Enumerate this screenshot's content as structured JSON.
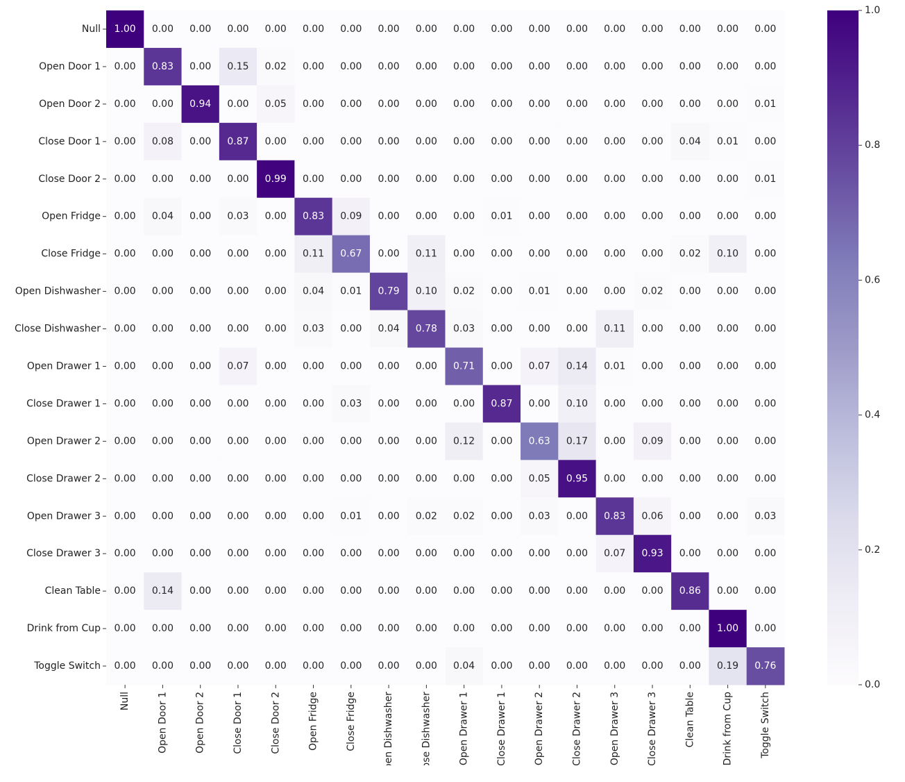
{
  "chart_data": {
    "type": "heatmap",
    "categories": [
      "Null",
      "Open Door 1",
      "Open Door 2",
      "Close Door 1",
      "Close Door 2",
      "Open Fridge",
      "Close Fridge",
      "Open Dishwasher",
      "Close Dishwasher",
      "Open Drawer 1",
      "Close Drawer 1",
      "Open Drawer 2",
      "Close Drawer 2",
      "Open Drawer 3",
      "Close Drawer 3",
      "Clean Table",
      "Drink from Cup",
      "Toggle Switch"
    ],
    "values": [
      [
        1,
        0,
        0,
        0,
        0,
        0,
        0,
        0,
        0,
        0,
        0,
        0,
        0,
        0,
        0,
        0,
        0,
        0
      ],
      [
        0,
        0.83,
        0,
        0.15,
        0.02,
        0,
        0,
        0,
        0,
        0,
        0,
        0,
        0,
        0,
        0,
        0,
        0,
        0
      ],
      [
        0,
        0,
        0.94,
        0,
        0.05,
        0,
        0,
        0,
        0,
        0,
        0,
        0,
        0,
        0,
        0,
        0,
        0,
        0.01
      ],
      [
        0,
        0.08,
        0,
        0.87,
        0,
        0,
        0,
        0,
        0,
        0,
        0,
        0,
        0,
        0,
        0,
        0.04,
        0.01,
        0
      ],
      [
        0,
        0,
        0,
        0,
        0.99,
        0,
        0,
        0,
        0,
        0,
        0,
        0,
        0,
        0,
        0,
        0,
        0,
        0.01
      ],
      [
        0,
        0.04,
        0,
        0.03,
        0,
        0.83,
        0.09,
        0,
        0,
        0,
        0.01,
        0,
        0,
        0,
        0,
        0,
        0,
        0
      ],
      [
        0,
        0,
        0,
        0,
        0,
        0.11,
        0.67,
        0,
        0.11,
        0,
        0,
        0,
        0,
        0,
        0,
        0.02,
        0.1,
        0
      ],
      [
        0,
        0,
        0,
        0,
        0,
        0.04,
        0.01,
        0.79,
        0.1,
        0.02,
        0,
        0.01,
        0,
        0,
        0.02,
        0,
        0,
        0
      ],
      [
        0,
        0,
        0,
        0,
        0,
        0.03,
        0,
        0.04,
        0.78,
        0.03,
        0,
        0,
        0,
        0.11,
        0,
        0,
        0,
        0
      ],
      [
        0,
        0,
        0,
        0.07,
        0,
        0,
        0,
        0,
        0,
        0.71,
        0,
        0.07,
        0.14,
        0.01,
        0,
        0,
        0,
        0
      ],
      [
        0,
        0,
        0,
        0,
        0,
        0,
        0.03,
        0,
        0,
        0,
        0.87,
        0,
        0.1,
        0,
        0,
        0,
        0,
        0
      ],
      [
        0,
        0,
        0,
        0,
        0,
        0,
        0,
        0,
        0,
        0.12,
        0,
        0.63,
        0.17,
        0,
        0.09,
        0,
        0,
        0
      ],
      [
        0,
        0,
        0,
        0,
        0,
        0,
        0,
        0,
        0,
        0,
        0,
        0.05,
        0.95,
        0,
        0,
        0,
        0,
        0
      ],
      [
        0,
        0,
        0,
        0,
        0,
        0,
        0.01,
        0,
        0.02,
        0.02,
        0,
        0.03,
        0,
        0.83,
        0.06,
        0,
        0,
        0.03
      ],
      [
        0,
        0,
        0,
        0,
        0,
        0,
        0,
        0,
        0,
        0,
        0,
        0,
        0,
        0.07,
        0.93,
        0,
        0,
        0
      ],
      [
        0,
        0.14,
        0,
        0,
        0,
        0,
        0,
        0,
        0,
        0,
        0,
        0,
        0,
        0,
        0,
        0.86,
        0,
        0
      ],
      [
        0,
        0,
        0,
        0,
        0,
        0,
        0,
        0,
        0,
        0,
        0,
        0,
        0,
        0,
        0,
        0,
        1,
        0
      ],
      [
        0,
        0,
        0,
        0,
        0,
        0,
        0,
        0,
        0,
        0.04,
        0,
        0,
        0,
        0,
        0,
        0,
        0.19,
        0.76
      ]
    ],
    "value_labels": [
      [
        "1.00",
        "0.00",
        "0.00",
        "0.00",
        "0.00",
        "0.00",
        "0.00",
        "0.00",
        "0.00",
        "0.00",
        "0.00",
        "0.00",
        "0.00",
        "0.00",
        "0.00",
        "0.00",
        "0.00",
        "0.00"
      ],
      [
        "0.00",
        "0.83",
        "0.00",
        "0.15",
        "0.02",
        "0.00",
        "0.00",
        "0.00",
        "0.00",
        "0.00",
        "0.00",
        "0.00",
        "0.00",
        "0.00",
        "0.00",
        "0.00",
        "0.00",
        "0.00"
      ],
      [
        "0.00",
        "0.00",
        "0.94",
        "0.00",
        "0.05",
        "0.00",
        "0.00",
        "0.00",
        "0.00",
        "0.00",
        "0.00",
        "0.00",
        "0.00",
        "0.00",
        "0.00",
        "0.00",
        "0.00",
        "0.01"
      ],
      [
        "0.00",
        "0.08",
        "0.00",
        "0.87",
        "0.00",
        "0.00",
        "0.00",
        "0.00",
        "0.00",
        "0.00",
        "0.00",
        "0.00",
        "0.00",
        "0.00",
        "0.00",
        "0.04",
        "0.01",
        "0.00"
      ],
      [
        "0.00",
        "0.00",
        "0.00",
        "0.00",
        "0.99",
        "0.00",
        "0.00",
        "0.00",
        "0.00",
        "0.00",
        "0.00",
        "0.00",
        "0.00",
        "0.00",
        "0.00",
        "0.00",
        "0.00",
        "0.01"
      ],
      [
        "0.00",
        "0.04",
        "0.00",
        "0.03",
        "0.00",
        "0.83",
        "0.09",
        "0.00",
        "0.00",
        "0.00",
        "0.01",
        "0.00",
        "0.00",
        "0.00",
        "0.00",
        "0.00",
        "0.00",
        "0.00"
      ],
      [
        "0.00",
        "0.00",
        "0.00",
        "0.00",
        "0.00",
        "0.11",
        "0.67",
        "0.00",
        "0.11",
        "0.00",
        "0.00",
        "0.00",
        "0.00",
        "0.00",
        "0.00",
        "0.02",
        "0.10",
        "0.00"
      ],
      [
        "0.00",
        "0.00",
        "0.00",
        "0.00",
        "0.00",
        "0.04",
        "0.01",
        "0.79",
        "0.10",
        "0.02",
        "0.00",
        "0.01",
        "0.00",
        "0.00",
        "0.02",
        "0.00",
        "0.00",
        "0.00"
      ],
      [
        "0.00",
        "0.00",
        "0.00",
        "0.00",
        "0.00",
        "0.03",
        "0.00",
        "0.04",
        "0.78",
        "0.03",
        "0.00",
        "0.00",
        "0.00",
        "0.11",
        "0.00",
        "0.00",
        "0.00",
        "0.00"
      ],
      [
        "0.00",
        "0.00",
        "0.00",
        "0.07",
        "0.00",
        "0.00",
        "0.00",
        "0.00",
        "0.00",
        "0.71",
        "0.00",
        "0.07",
        "0.14",
        "0.01",
        "0.00",
        "0.00",
        "0.00",
        "0.00"
      ],
      [
        "0.00",
        "0.00",
        "0.00",
        "0.00",
        "0.00",
        "0.00",
        "0.03",
        "0.00",
        "0.00",
        "0.00",
        "0.87",
        "0.00",
        "0.10",
        "0.00",
        "0.00",
        "0.00",
        "0.00",
        "0.00"
      ],
      [
        "0.00",
        "0.00",
        "0.00",
        "0.00",
        "0.00",
        "0.00",
        "0.00",
        "0.00",
        "0.00",
        "0.12",
        "0.00",
        "0.63",
        "0.17",
        "0.00",
        "0.09",
        "0.00",
        "0.00",
        "0.00"
      ],
      [
        "0.00",
        "0.00",
        "0.00",
        "0.00",
        "0.00",
        "0.00",
        "0.00",
        "0.00",
        "0.00",
        "0.00",
        "0.00",
        "0.05",
        "0.95",
        "0.00",
        "0.00",
        "0.00",
        "0.00",
        "0.00"
      ],
      [
        "0.00",
        "0.00",
        "0.00",
        "0.00",
        "0.00",
        "0.00",
        "0.01",
        "0.00",
        "0.02",
        "0.02",
        "0.00",
        "0.03",
        "0.00",
        "0.83",
        "0.06",
        "0.00",
        "0.00",
        "0.03"
      ],
      [
        "0.00",
        "0.00",
        "0.00",
        "0.00",
        "0.00",
        "0.00",
        "0.00",
        "0.00",
        "0.00",
        "0.00",
        "0.00",
        "0.00",
        "0.00",
        "0.07",
        "0.93",
        "0.00",
        "0.00",
        "0.00"
      ],
      [
        "0.00",
        "0.14",
        "0.00",
        "0.00",
        "0.00",
        "0.00",
        "0.00",
        "0.00",
        "0.00",
        "0.00",
        "0.00",
        "0.00",
        "0.00",
        "0.00",
        "0.00",
        "0.86",
        "0.00",
        "0.00"
      ],
      [
        "0.00",
        "0.00",
        "0.00",
        "0.00",
        "0.00",
        "0.00",
        "0.00",
        "0.00",
        "0.00",
        "0.00",
        "0.00",
        "0.00",
        "0.00",
        "0.00",
        "0.00",
        "0.00",
        "1.00",
        "0.00"
      ],
      [
        "0.00",
        "0.00",
        "0.00",
        "0.00",
        "0.00",
        "0.00",
        "0.00",
        "0.00",
        "0.00",
        "0.04",
        "0.00",
        "0.00",
        "0.00",
        "0.00",
        "0.00",
        "0.00",
        "0.19",
        "0.76"
      ]
    ],
    "colormap": [
      "#fcfbfd",
      "#efedf5",
      "#dadaeb",
      "#bcbddc",
      "#9e9ac8",
      "#807dba",
      "#6a51a3",
      "#54278f",
      "#3f007d"
    ],
    "clim": [
      0,
      1
    ],
    "cticks": [
      {
        "value": 0,
        "label": "0.0"
      },
      {
        "value": 0.2,
        "label": "0.2"
      },
      {
        "value": 0.4,
        "label": "0.4"
      },
      {
        "value": 0.6,
        "label": "0.6"
      },
      {
        "value": 0.8,
        "label": "0.8"
      },
      {
        "value": 1,
        "label": "1.0"
      }
    ]
  }
}
